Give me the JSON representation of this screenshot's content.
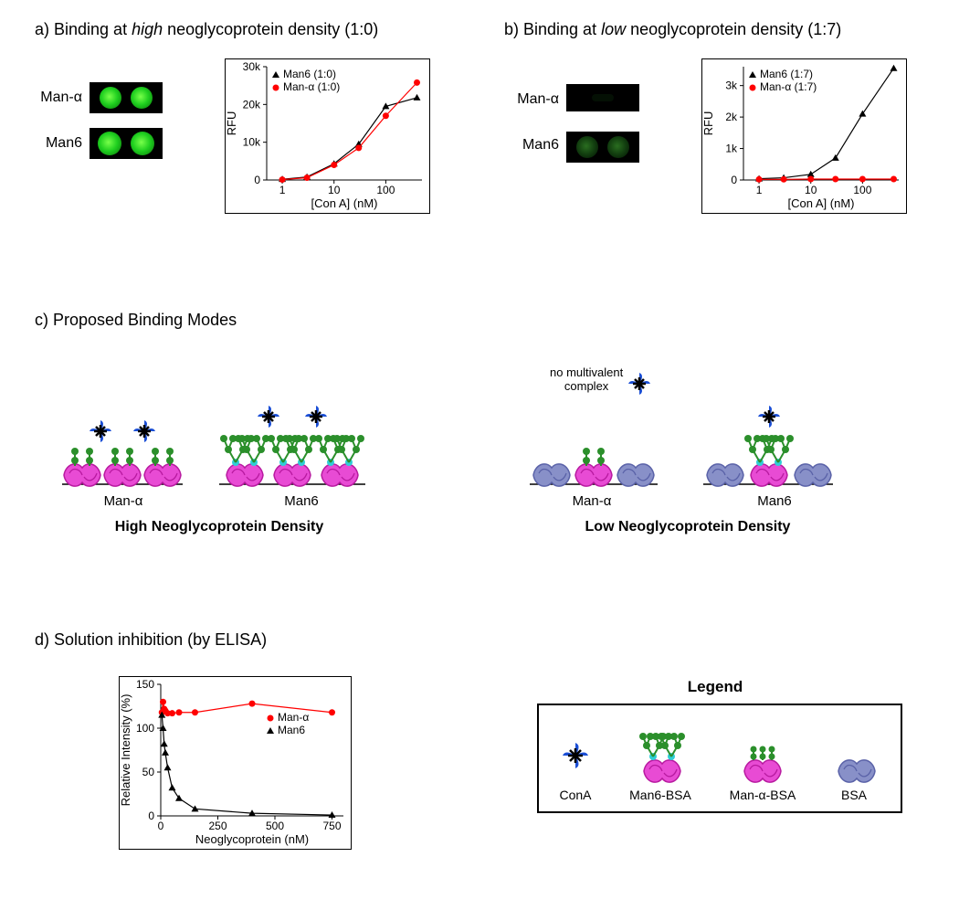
{
  "panelA": {
    "title_prefix": "a) Binding at ",
    "title_italic": "high",
    "title_suffix": " neoglycoprotein density (1:0)",
    "label1": "Man-α",
    "label2": "Man6",
    "chart": {
      "type": "line-scatter",
      "xlabel": "[Con A] (nM)",
      "ylabel": "RFU",
      "xscale": "log",
      "xlim": [
        0.5,
        500
      ],
      "ylim": [
        0,
        30000
      ],
      "xticks": [
        1,
        10,
        100
      ],
      "yticks": [
        0,
        10000,
        20000,
        30000
      ],
      "yticklabels": [
        "0",
        "10k",
        "20k",
        "30k"
      ],
      "series": [
        {
          "name": "Man6 (1:0)",
          "marker": "triangle",
          "color": "#000000",
          "points": [
            [
              1,
              200
            ],
            [
              3,
              800
            ],
            [
              10,
              4300
            ],
            [
              30,
              9500
            ],
            [
              100,
              19500
            ],
            [
              400,
              21800
            ]
          ]
        },
        {
          "name": "Man-α (1:0)",
          "marker": "circle",
          "color": "#ff0000",
          "points": [
            [
              1,
              100
            ],
            [
              3,
              600
            ],
            [
              10,
              4000
            ],
            [
              30,
              8500
            ],
            [
              100,
              17000
            ],
            [
              400,
              25800
            ]
          ]
        }
      ],
      "legend_pos": "top-inside"
    }
  },
  "panelB": {
    "title_prefix": "b) Binding at ",
    "title_italic": "low",
    "title_suffix": " neoglycoprotein density (1:7)",
    "label1": "Man-α",
    "label2": "Man6",
    "chart": {
      "type": "line-scatter",
      "xlabel": "[Con A] (nM)",
      "ylabel": "RFU",
      "xscale": "log",
      "xlim": [
        0.5,
        500
      ],
      "ylim": [
        0,
        3600
      ],
      "xticks": [
        1,
        10,
        100
      ],
      "yticks": [
        0,
        1000,
        2000,
        3000
      ],
      "yticklabels": [
        "0",
        "1k",
        "2k",
        "3k"
      ],
      "series": [
        {
          "name": "Man6 (1:7)",
          "marker": "triangle",
          "color": "#000000",
          "points": [
            [
              1,
              40
            ],
            [
              3,
              70
            ],
            [
              10,
              180
            ],
            [
              30,
              700
            ],
            [
              100,
              2100
            ],
            [
              400,
              3550
            ]
          ]
        },
        {
          "name": "Man-α (1:7)",
          "marker": "circle",
          "color": "#ff0000",
          "points": [
            [
              1,
              20
            ],
            [
              3,
              20
            ],
            [
              10,
              30
            ],
            [
              30,
              30
            ],
            [
              100,
              30
            ],
            [
              400,
              30
            ]
          ]
        }
      ],
      "legend_pos": "top-inside"
    }
  },
  "panelC": {
    "title": "c) Proposed Binding Modes",
    "labels": {
      "l1": "Man-α",
      "l2": "Man6",
      "l3": "Man-α",
      "l4": "Man6",
      "high": "High Neoglycoprotein Density",
      "low": "Low Neoglycoprotein Density",
      "no_complex": "no multivalent\ncomplex"
    },
    "colors": {
      "cona": "#1b4fd6",
      "cona_core": "#000000",
      "bsa": "#e84bd4",
      "bsa_outline": "#b81aa0",
      "bsa_grey": "#8890c8",
      "bsa_grey_outline": "#5a62a8",
      "mannose": "#2b8f2b",
      "linker": "#2fced6"
    }
  },
  "panelD": {
    "title": "d) Solution inhibition (by ELISA)",
    "chart": {
      "type": "line-scatter",
      "xlabel": "Neoglycoprotein (nM)",
      "ylabel": "Relative Intensity (%)",
      "xscale": "linear",
      "xlim": [
        0,
        800
      ],
      "ylim": [
        0,
        150
      ],
      "xticks": [
        0,
        250,
        500,
        750
      ],
      "yticks": [
        0,
        50,
        100,
        150
      ],
      "yticklabels": [
        "0",
        "50",
        "100",
        "150"
      ],
      "series": [
        {
          "name": "Man-α",
          "marker": "circle",
          "color": "#ff0000",
          "points": [
            [
              5,
              118
            ],
            [
              10,
              130
            ],
            [
              15,
              122
            ],
            [
              20,
              120
            ],
            [
              30,
              117
            ],
            [
              50,
              117
            ],
            [
              80,
              118
            ],
            [
              150,
              118
            ],
            [
              400,
              128
            ],
            [
              750,
              118
            ]
          ]
        },
        {
          "name": "Man6",
          "marker": "triangle",
          "color": "#000000",
          "points": [
            [
              5,
              115
            ],
            [
              10,
              100
            ],
            [
              15,
              82
            ],
            [
              20,
              72
            ],
            [
              30,
              55
            ],
            [
              50,
              32
            ],
            [
              80,
              20
            ],
            [
              150,
              8
            ],
            [
              400,
              3
            ],
            [
              750,
              1
            ]
          ]
        }
      ],
      "legend_pos": "right-inside"
    }
  },
  "legend": {
    "title": "Legend",
    "items": [
      "ConA",
      "Man6-BSA",
      "Man-α-BSA",
      "BSA"
    ]
  }
}
